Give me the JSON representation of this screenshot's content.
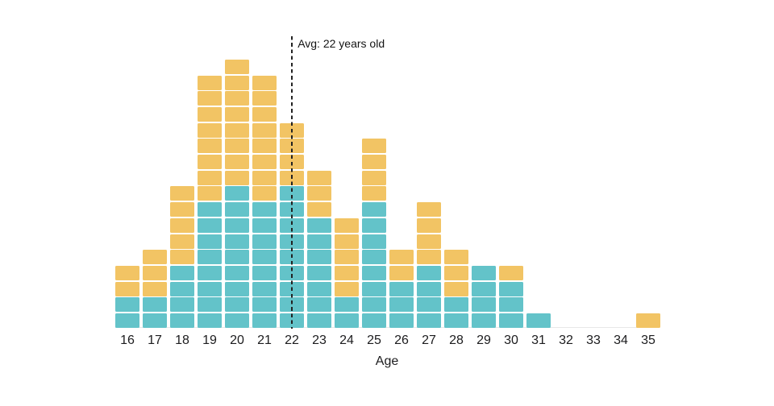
{
  "chart_data": {
    "type": "bar",
    "subtype": "stacked-unit-histogram",
    "title": "",
    "xlabel": "Age",
    "ylabel": "",
    "categories": [
      16,
      17,
      18,
      19,
      20,
      21,
      22,
      23,
      24,
      25,
      26,
      27,
      28,
      29,
      30,
      31,
      32,
      33,
      34,
      35
    ],
    "series": [
      {
        "name": "bottom-segment-teal",
        "color": "#63c3c9",
        "values": [
          2,
          2,
          4,
          8,
          9,
          8,
          9,
          7,
          2,
          8,
          3,
          4,
          2,
          4,
          3,
          1,
          0,
          0,
          0,
          0
        ]
      },
      {
        "name": "top-segment-yellow",
        "color": "#f2c464",
        "values": [
          2,
          3,
          5,
          8,
          8,
          8,
          4,
          3,
          5,
          4,
          2,
          4,
          3,
          0,
          1,
          0,
          0,
          0,
          0,
          1
        ]
      }
    ],
    "totals": [
      4,
      5,
      9,
      16,
      17,
      16,
      13,
      10,
      7,
      12,
      5,
      8,
      5,
      4,
      4,
      1,
      0,
      0,
      0,
      1
    ],
    "annotation": {
      "text": "Avg: 22 years old",
      "at_category": 22
    },
    "legend_position": "none",
    "grid": "off",
    "ylim": [
      0,
      17
    ]
  },
  "x_axis": {
    "label": "Age"
  },
  "colors": {
    "teal": "#63c3c9",
    "yellow": "#f2c464",
    "axis_line": "#e8e8e8",
    "text": "#1c1c1e",
    "avg_line": "#222222"
  }
}
